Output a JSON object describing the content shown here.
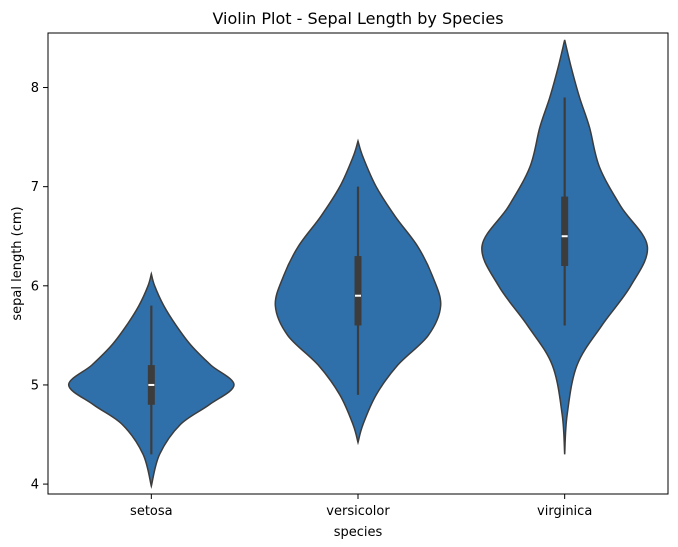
{
  "chart_data": {
    "type": "violin",
    "title": "Violin Plot - Sepal Length by Species",
    "xlabel": "species",
    "ylabel": "sepal length (cm)",
    "categories": [
      "setosa",
      "versicolor",
      "virginica"
    ],
    "ylim": [
      3.9,
      8.55
    ],
    "yticks": [
      4,
      5,
      6,
      7,
      8
    ],
    "grid": false,
    "color": "#2f70ab",
    "box_color": "#3c3c3c",
    "series": [
      {
        "category": "setosa",
        "min": 4.3,
        "q1": 4.8,
        "median": 5.0,
        "q3": 5.2,
        "max": 5.8,
        "kde_y": [
          3.98,
          4.3,
          4.6,
          4.8,
          5.0,
          5.2,
          5.4,
          5.6,
          5.8,
          6.0,
          6.12
        ],
        "kde_w": [
          0.0,
          0.1,
          0.35,
          0.7,
          1.0,
          0.72,
          0.48,
          0.3,
          0.15,
          0.04,
          0.0
        ]
      },
      {
        "category": "versicolor",
        "min": 4.9,
        "q1": 5.6,
        "median": 5.9,
        "q3": 6.3,
        "max": 7.0,
        "kde_y": [
          4.42,
          4.6,
          4.9,
          5.2,
          5.5,
          5.8,
          6.1,
          6.4,
          6.7,
          7.0,
          7.3,
          7.46
        ],
        "kde_w": [
          0.0,
          0.06,
          0.22,
          0.48,
          0.85,
          1.0,
          0.9,
          0.72,
          0.45,
          0.22,
          0.06,
          0.0
        ]
      },
      {
        "category": "virginica",
        "min": 5.6,
        "q1": 6.2,
        "median": 6.5,
        "q3": 6.9,
        "max": 7.9,
        "kde_y": [
          4.3,
          4.7,
          5.2,
          5.6,
          6.0,
          6.4,
          6.8,
          7.2,
          7.6,
          7.9,
          8.2,
          8.48
        ],
        "kde_w": [
          0.0,
          0.03,
          0.15,
          0.45,
          0.8,
          1.0,
          0.68,
          0.42,
          0.3,
          0.18,
          0.08,
          0.0
        ]
      }
    ]
  }
}
